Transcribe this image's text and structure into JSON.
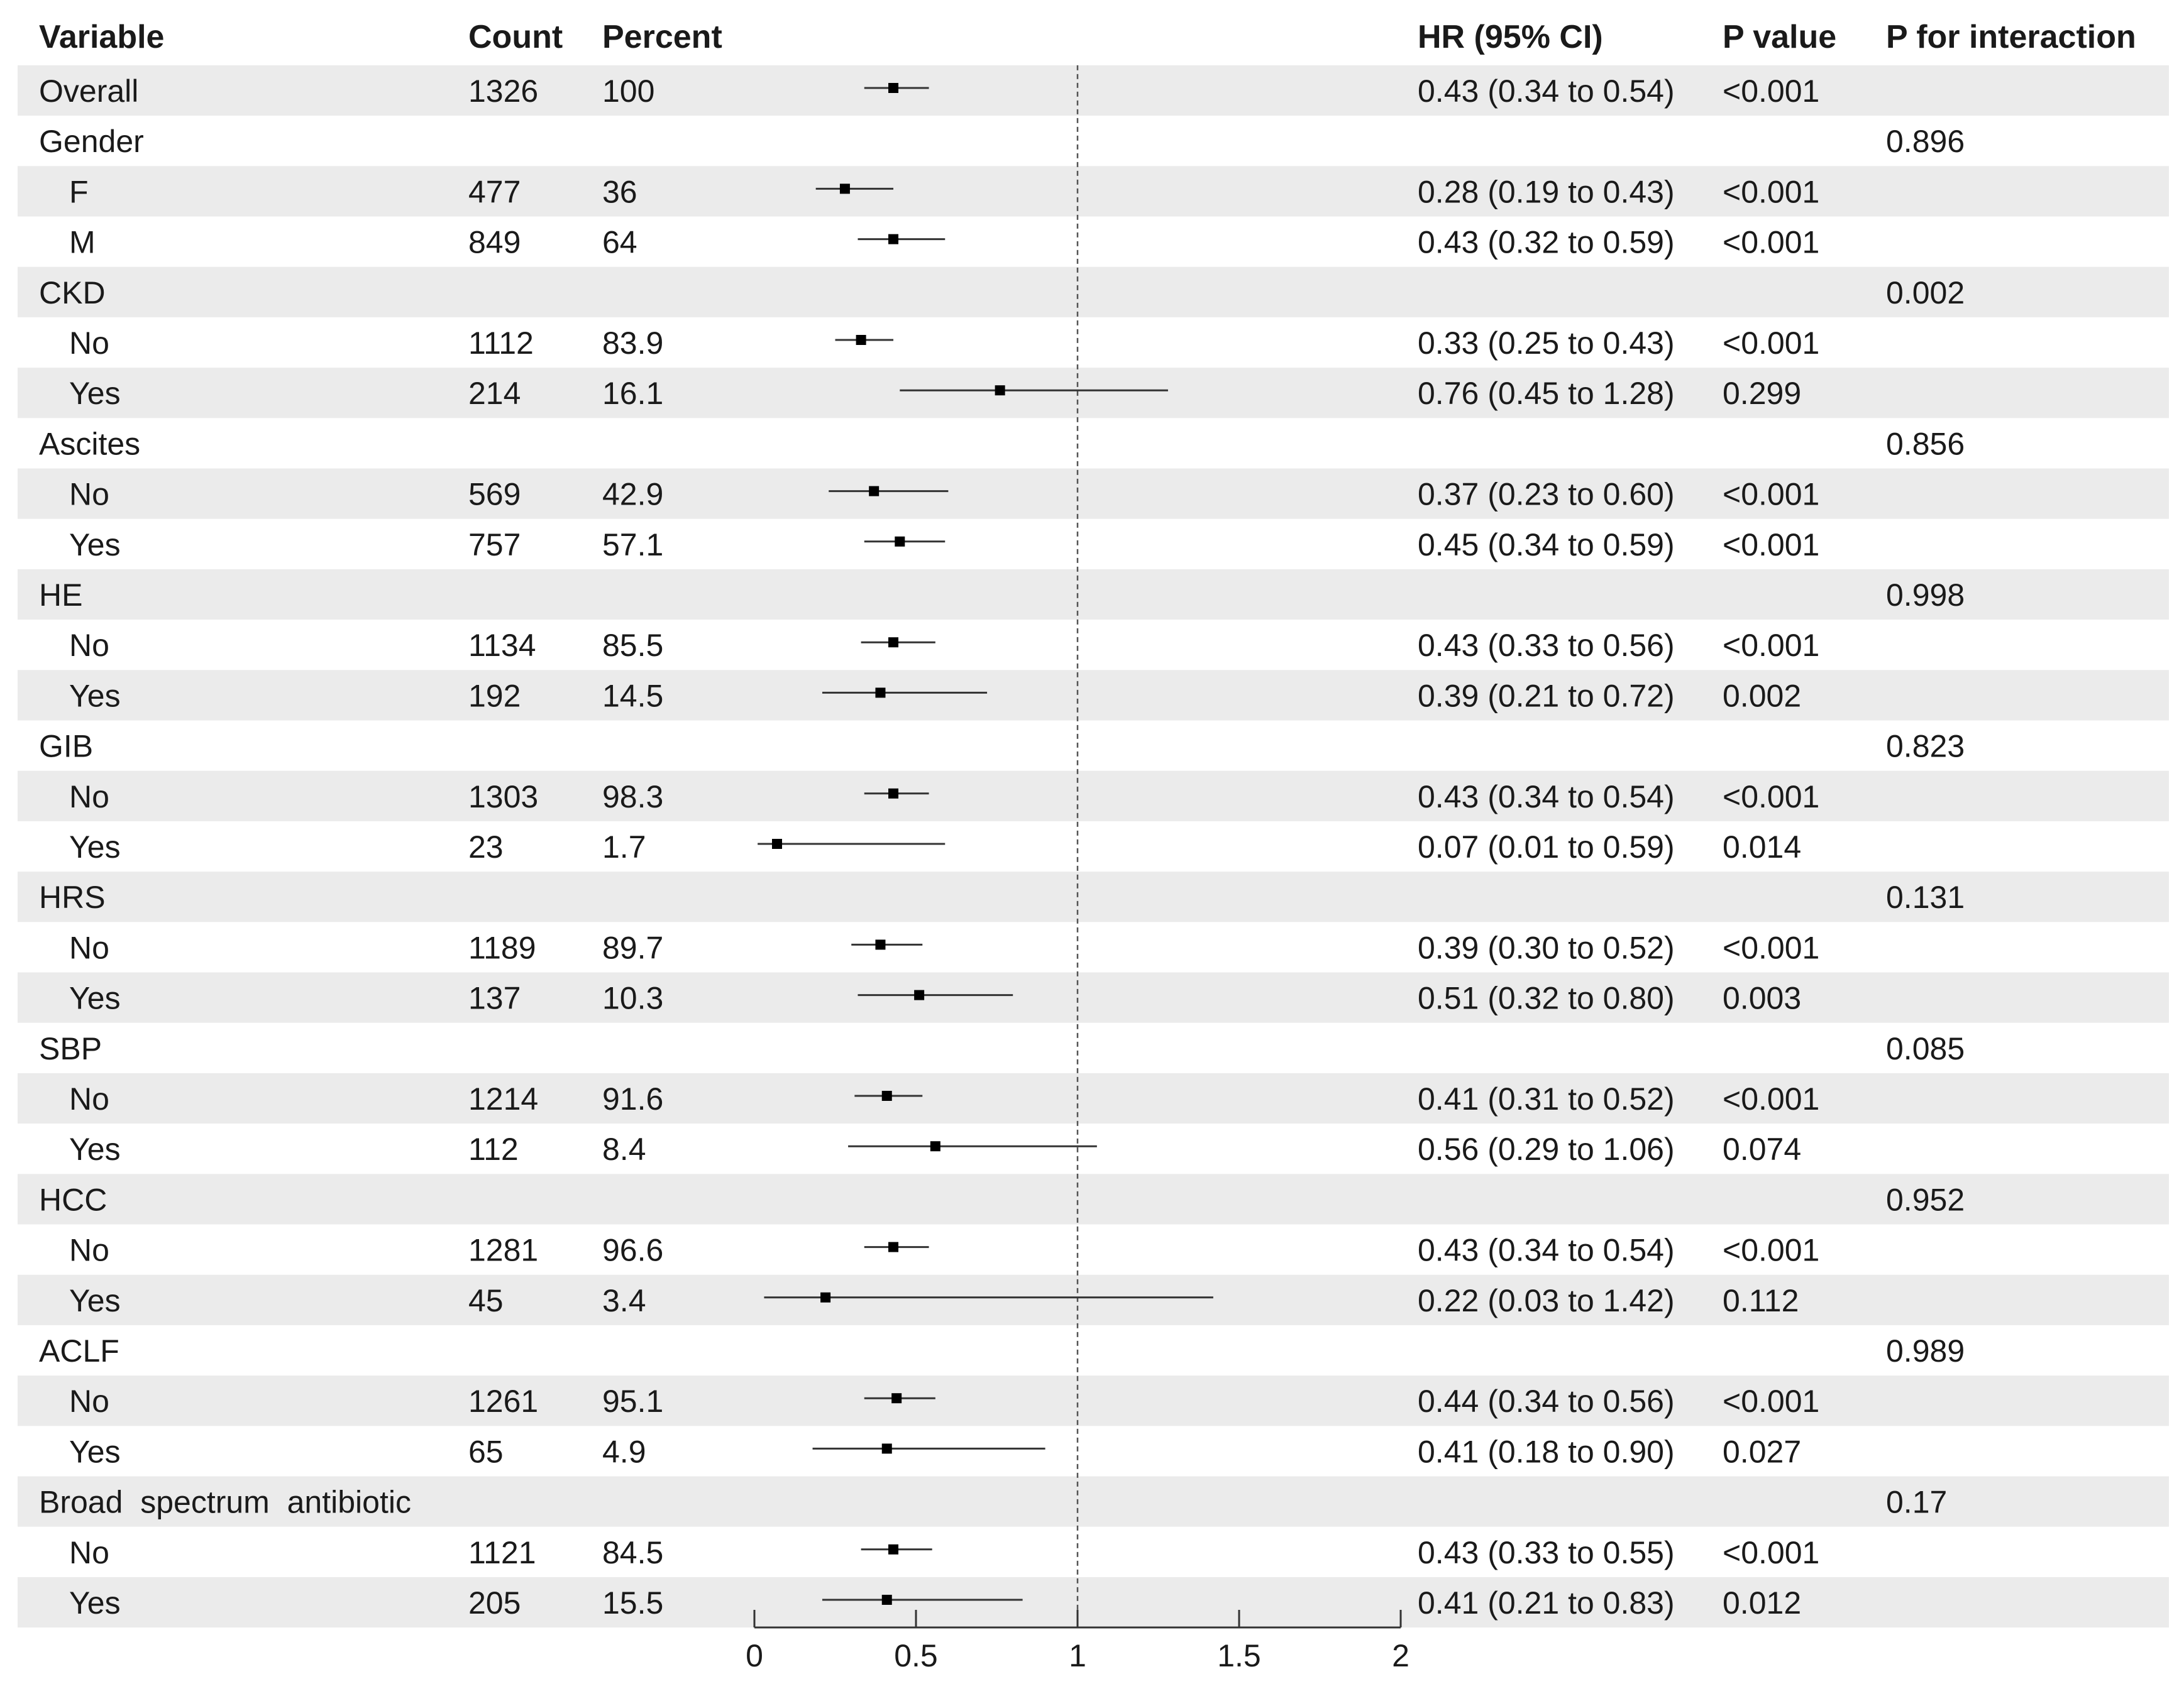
{
  "headers": {
    "variable": "Variable",
    "count": "Count",
    "percent": "Percent",
    "hr": "HR (95% CI)",
    "p_value": "P value",
    "p_interaction": "P for interaction"
  },
  "colors": {
    "band": "#ebebeb",
    "text": "#1a1a1a",
    "point": "#000000",
    "ci_line": "#333333",
    "reference_line": "#555555"
  },
  "chart_data": {
    "type": "forest",
    "reference_value": 1,
    "xlim": [
      0,
      2
    ],
    "x_ticks": [
      "0",
      "0.5",
      "1",
      "1.5",
      "2"
    ],
    "x_tick_values": [
      0,
      0.5,
      1,
      1.5,
      2
    ],
    "rows": [
      {
        "label": "Overall",
        "indent": false,
        "count": "1326",
        "percent": "100",
        "hr": 0.43,
        "lo": 0.34,
        "hi": 0.54,
        "hr_text": "0.43 (0.34 to 0.54)",
        "p": "<0.001",
        "p_int": ""
      },
      {
        "label": "Gender",
        "indent": false,
        "count": "",
        "percent": "",
        "hr": null,
        "lo": null,
        "hi": null,
        "hr_text": "",
        "p": "",
        "p_int": "0.896"
      },
      {
        "label": "F",
        "indent": true,
        "count": "477",
        "percent": "36",
        "hr": 0.28,
        "lo": 0.19,
        "hi": 0.43,
        "hr_text": "0.28 (0.19 to 0.43)",
        "p": "<0.001",
        "p_int": ""
      },
      {
        "label": "M",
        "indent": true,
        "count": "849",
        "percent": "64",
        "hr": 0.43,
        "lo": 0.32,
        "hi": 0.59,
        "hr_text": "0.43 (0.32 to 0.59)",
        "p": "<0.001",
        "p_int": ""
      },
      {
        "label": "CKD",
        "indent": false,
        "count": "",
        "percent": "",
        "hr": null,
        "lo": null,
        "hi": null,
        "hr_text": "",
        "p": "",
        "p_int": "0.002"
      },
      {
        "label": "No",
        "indent": true,
        "count": "1112",
        "percent": "83.9",
        "hr": 0.33,
        "lo": 0.25,
        "hi": 0.43,
        "hr_text": "0.33 (0.25 to 0.43)",
        "p": "<0.001",
        "p_int": ""
      },
      {
        "label": "Yes",
        "indent": true,
        "count": "214",
        "percent": "16.1",
        "hr": 0.76,
        "lo": 0.45,
        "hi": 1.28,
        "hr_text": "0.76 (0.45 to 1.28)",
        "p": "0.299",
        "p_int": ""
      },
      {
        "label": "Ascites",
        "indent": false,
        "count": "",
        "percent": "",
        "hr": null,
        "lo": null,
        "hi": null,
        "hr_text": "",
        "p": "",
        "p_int": "0.856"
      },
      {
        "label": "No",
        "indent": true,
        "count": "569",
        "percent": "42.9",
        "hr": 0.37,
        "lo": 0.23,
        "hi": 0.6,
        "hr_text": "0.37 (0.23 to 0.60)",
        "p": "<0.001",
        "p_int": ""
      },
      {
        "label": "Yes",
        "indent": true,
        "count": "757",
        "percent": "57.1",
        "hr": 0.45,
        "lo": 0.34,
        "hi": 0.59,
        "hr_text": "0.45 (0.34 to 0.59)",
        "p": "<0.001",
        "p_int": ""
      },
      {
        "label": "HE",
        "indent": false,
        "count": "",
        "percent": "",
        "hr": null,
        "lo": null,
        "hi": null,
        "hr_text": "",
        "p": "",
        "p_int": "0.998"
      },
      {
        "label": "No",
        "indent": true,
        "count": "1134",
        "percent": "85.5",
        "hr": 0.43,
        "lo": 0.33,
        "hi": 0.56,
        "hr_text": "0.43 (0.33 to 0.56)",
        "p": "<0.001",
        "p_int": ""
      },
      {
        "label": "Yes",
        "indent": true,
        "count": "192",
        "percent": "14.5",
        "hr": 0.39,
        "lo": 0.21,
        "hi": 0.72,
        "hr_text": "0.39 (0.21 to 0.72)",
        "p": "0.002",
        "p_int": ""
      },
      {
        "label": "GIB",
        "indent": false,
        "count": "",
        "percent": "",
        "hr": null,
        "lo": null,
        "hi": null,
        "hr_text": "",
        "p": "",
        "p_int": "0.823"
      },
      {
        "label": "No",
        "indent": true,
        "count": "1303",
        "percent": "98.3",
        "hr": 0.43,
        "lo": 0.34,
        "hi": 0.54,
        "hr_text": "0.43 (0.34 to 0.54)",
        "p": "<0.001",
        "p_int": ""
      },
      {
        "label": "Yes",
        "indent": true,
        "count": "23",
        "percent": "1.7",
        "hr": 0.07,
        "lo": 0.01,
        "hi": 0.59,
        "hr_text": "0.07 (0.01 to 0.59)",
        "p": "0.014",
        "p_int": ""
      },
      {
        "label": "HRS",
        "indent": false,
        "count": "",
        "percent": "",
        "hr": null,
        "lo": null,
        "hi": null,
        "hr_text": "",
        "p": "",
        "p_int": "0.131"
      },
      {
        "label": "No",
        "indent": true,
        "count": "1189",
        "percent": "89.7",
        "hr": 0.39,
        "lo": 0.3,
        "hi": 0.52,
        "hr_text": "0.39 (0.30 to 0.52)",
        "p": "<0.001",
        "p_int": ""
      },
      {
        "label": "Yes",
        "indent": true,
        "count": "137",
        "percent": "10.3",
        "hr": 0.51,
        "lo": 0.32,
        "hi": 0.8,
        "hr_text": "0.51 (0.32 to 0.80)",
        "p": "0.003",
        "p_int": ""
      },
      {
        "label": "SBP",
        "indent": false,
        "count": "",
        "percent": "",
        "hr": null,
        "lo": null,
        "hi": null,
        "hr_text": "",
        "p": "",
        "p_int": "0.085"
      },
      {
        "label": "No",
        "indent": true,
        "count": "1214",
        "percent": "91.6",
        "hr": 0.41,
        "lo": 0.31,
        "hi": 0.52,
        "hr_text": "0.41 (0.31 to 0.52)",
        "p": "<0.001",
        "p_int": ""
      },
      {
        "label": "Yes",
        "indent": true,
        "count": "112",
        "percent": "8.4",
        "hr": 0.56,
        "lo": 0.29,
        "hi": 1.06,
        "hr_text": "0.56 (0.29 to 1.06)",
        "p": "0.074",
        "p_int": ""
      },
      {
        "label": "HCC",
        "indent": false,
        "count": "",
        "percent": "",
        "hr": null,
        "lo": null,
        "hi": null,
        "hr_text": "",
        "p": "",
        "p_int": "0.952"
      },
      {
        "label": "No",
        "indent": true,
        "count": "1281",
        "percent": "96.6",
        "hr": 0.43,
        "lo": 0.34,
        "hi": 0.54,
        "hr_text": "0.43 (0.34 to 0.54)",
        "p": "<0.001",
        "p_int": ""
      },
      {
        "label": "Yes",
        "indent": true,
        "count": "45",
        "percent": "3.4",
        "hr": 0.22,
        "lo": 0.03,
        "hi": 1.42,
        "hr_text": "0.22 (0.03 to 1.42)",
        "p": "0.112",
        "p_int": ""
      },
      {
        "label": "ACLF",
        "indent": false,
        "count": "",
        "percent": "",
        "hr": null,
        "lo": null,
        "hi": null,
        "hr_text": "",
        "p": "",
        "p_int": "0.989"
      },
      {
        "label": "No",
        "indent": true,
        "count": "1261",
        "percent": "95.1",
        "hr": 0.44,
        "lo": 0.34,
        "hi": 0.56,
        "hr_text": "0.44 (0.34 to 0.56)",
        "p": "<0.001",
        "p_int": ""
      },
      {
        "label": "Yes",
        "indent": true,
        "count": "65",
        "percent": "4.9",
        "hr": 0.41,
        "lo": 0.18,
        "hi": 0.9,
        "hr_text": "0.41 (0.18 to 0.90)",
        "p": "0.027",
        "p_int": ""
      },
      {
        "label": "Broad  spectrum  antibiotic",
        "indent": false,
        "count": "",
        "percent": "",
        "hr": null,
        "lo": null,
        "hi": null,
        "hr_text": "",
        "p": "",
        "p_int": "0.17"
      },
      {
        "label": "No",
        "indent": true,
        "count": "1121",
        "percent": "84.5",
        "hr": 0.43,
        "lo": 0.33,
        "hi": 0.55,
        "hr_text": "0.43 (0.33 to 0.55)",
        "p": "<0.001",
        "p_int": ""
      },
      {
        "label": "Yes",
        "indent": true,
        "count": "205",
        "percent": "15.5",
        "hr": 0.41,
        "lo": 0.21,
        "hi": 0.83,
        "hr_text": "0.41 (0.21 to 0.83)",
        "p": "0.012",
        "p_int": ""
      }
    ]
  }
}
